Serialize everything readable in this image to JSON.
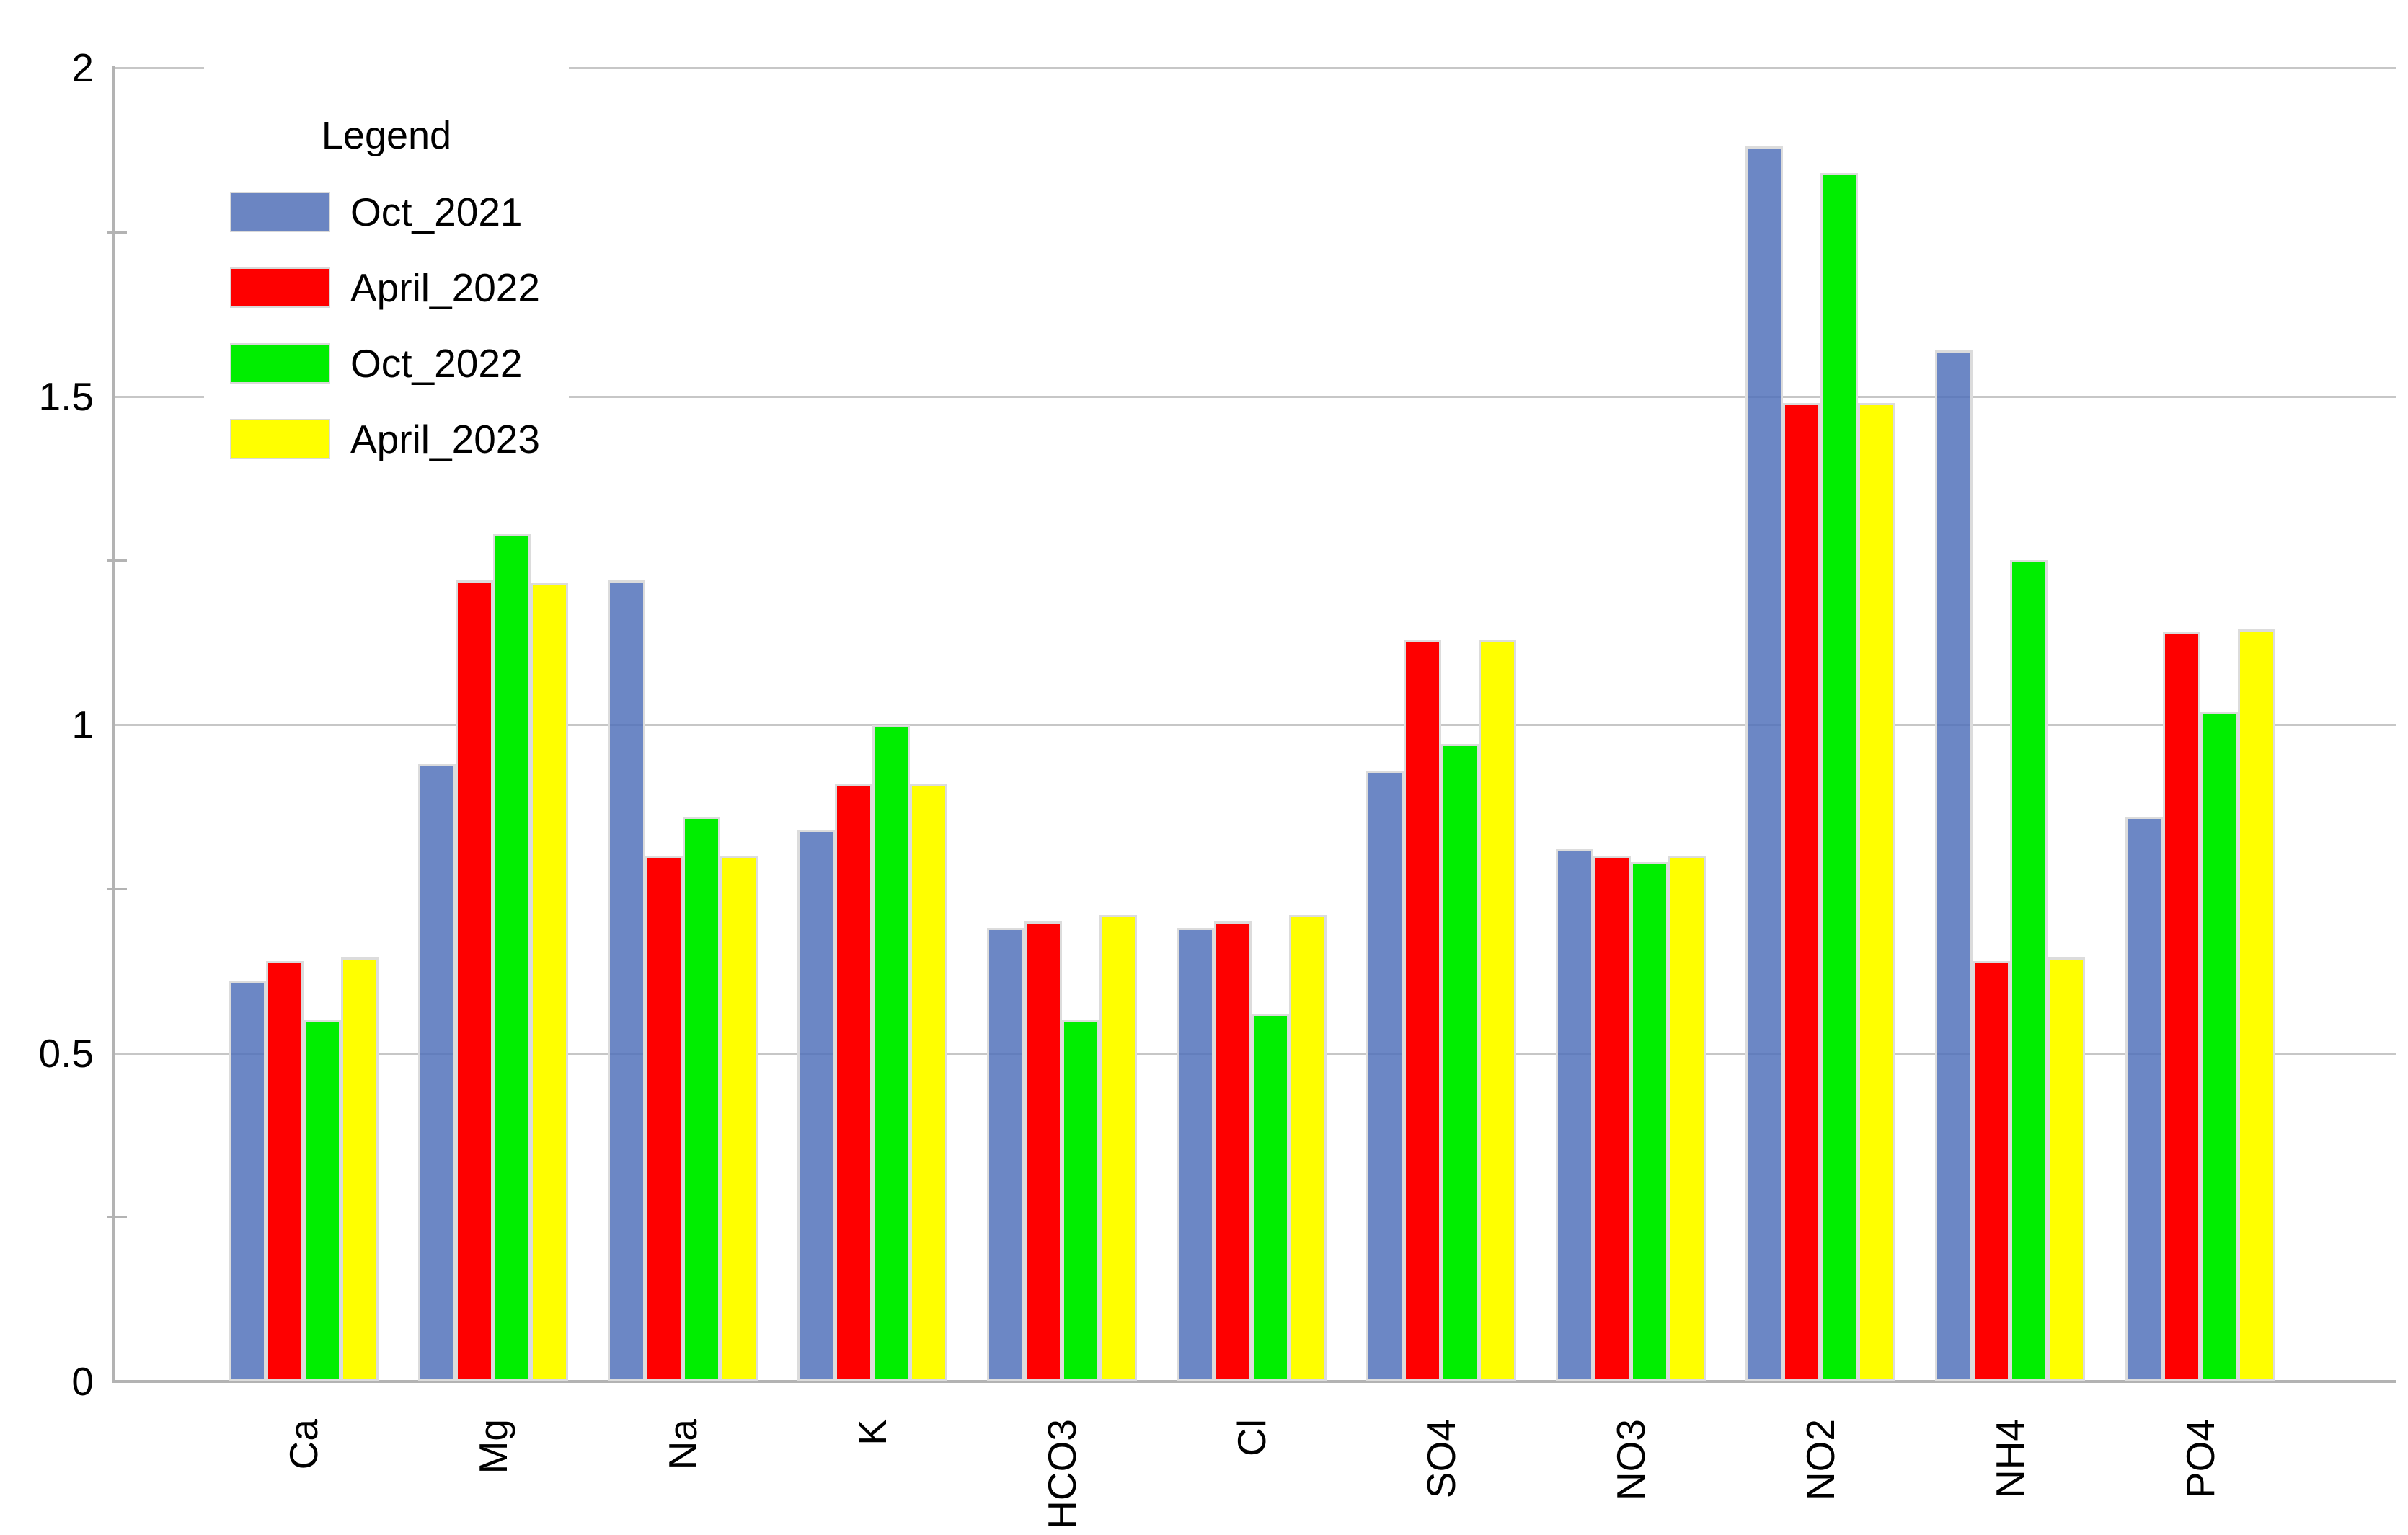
{
  "chart_data": {
    "type": "bar",
    "title": "",
    "xlabel": "",
    "ylabel": "",
    "legend": {
      "title": "Legend",
      "position": "top-left"
    },
    "categories": [
      "Ca",
      "Mg",
      "Na",
      "K",
      "HCO3",
      "Cl",
      "SO4",
      "NO3",
      "NO2",
      "NH4",
      "PO4"
    ],
    "series": [
      {
        "name": "Oct_2021",
        "color": "#6b85c2",
        "values": [
          0.61,
          0.94,
          1.22,
          0.84,
          0.69,
          0.69,
          0.93,
          0.81,
          1.88,
          1.57,
          0.86
        ]
      },
      {
        "name": "April_2022",
        "color": "#fe0000",
        "values": [
          0.64,
          1.22,
          0.8,
          0.91,
          0.7,
          0.7,
          1.13,
          0.8,
          1.49,
          0.64,
          1.14
        ]
      },
      {
        "name": "Oct_2022",
        "color": "#00ee00",
        "values": [
          0.55,
          1.29,
          0.86,
          1.0,
          0.55,
          0.56,
          0.97,
          0.79,
          1.84,
          1.25,
          1.02
        ]
      },
      {
        "name": "April_2023",
        "color": "#ffff00",
        "values": [
          0.645,
          1.215,
          0.8,
          0.91,
          0.71,
          0.71,
          1.13,
          0.8,
          1.49,
          0.645,
          1.145
        ]
      }
    ],
    "ylim": [
      0,
      2
    ],
    "yticks": [
      0,
      0.5,
      1,
      1.5,
      2
    ],
    "ytick_labels": [
      "0",
      "0.5",
      "1",
      "1.5",
      "2"
    ],
    "minor_yticks": [
      0.25,
      0.75,
      1.25,
      1.75
    ],
    "grid": true,
    "gridline_color": "#c7c7c7",
    "axis_color": "#b3b3b3",
    "bar_border_color": "#dcdcdc"
  }
}
